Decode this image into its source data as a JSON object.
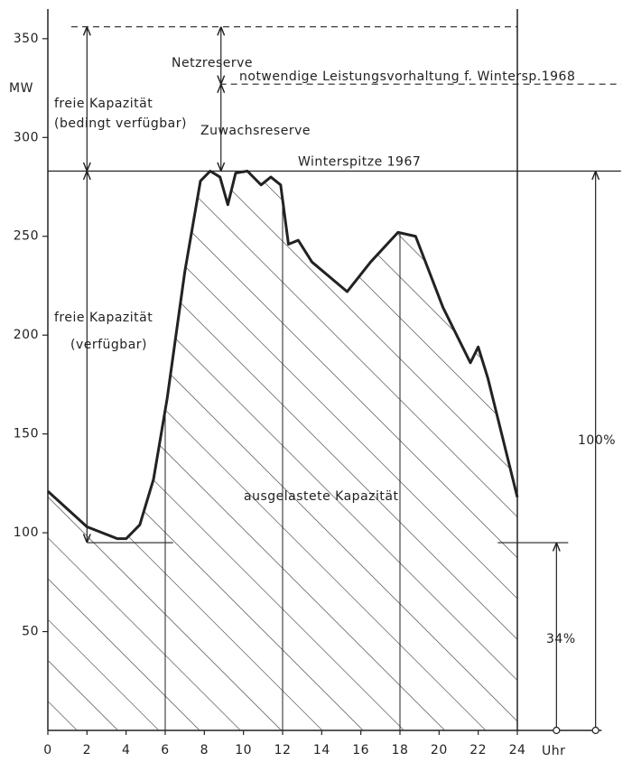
{
  "chart_data": {
    "type": "area",
    "x_label": "Uhr",
    "y_label": "MW",
    "x": [
      0,
      2,
      3.55,
      4,
      4.7,
      5.4,
      6.1,
      7,
      7.8,
      8.3,
      8.8,
      9.2,
      9.6,
      10.2,
      10.9,
      11.4,
      11.9,
      12.3,
      12.8,
      13.5,
      15.3,
      16.5,
      17.9,
      18.8,
      20.2,
      21.6,
      22,
      22.5,
      24
    ],
    "values": [
      121,
      103,
      97,
      97,
      104,
      127,
      168,
      232,
      278,
      283,
      280,
      266,
      282,
      283,
      276,
      280,
      276,
      246,
      248,
      237,
      222,
      237,
      252,
      250,
      214,
      186,
      194,
      178,
      118
    ],
    "color": "#222222",
    "hatch": true,
    "xlim": [
      0,
      29
    ],
    "ylim": [
      0,
      365
    ],
    "xticks": [
      0,
      2,
      4,
      6,
      8,
      10,
      12,
      14,
      16,
      18,
      20,
      22,
      24
    ],
    "yticks": [
      50,
      100,
      150,
      200,
      250,
      300,
      350
    ],
    "vertical_lines": [
      6,
      12,
      18,
      24
    ],
    "reference_lines": [
      {
        "value": 283,
        "label": "Winterspitze  1967",
        "style": "solid"
      },
      {
        "value": 327,
        "label": "notwendige Leistungsvorhaltung f. Wintersp.1968",
        "style": "dashed"
      },
      {
        "value": 356,
        "style": "dashed"
      },
      {
        "value": 95,
        "style": "solid"
      }
    ],
    "annotations": [
      {
        "text": "Netzreserve"
      },
      {
        "text": "freie Kapazität"
      },
      {
        "text": "(bedingt verfügbar)"
      },
      {
        "text": "Zuwachsreserve"
      },
      {
        "text": "freie Kapazität"
      },
      {
        "text": "(verfügbar)"
      },
      {
        "text": "ausgelastete Kapazität"
      },
      {
        "text": "100%"
      },
      {
        "text": "34%"
      }
    ]
  }
}
